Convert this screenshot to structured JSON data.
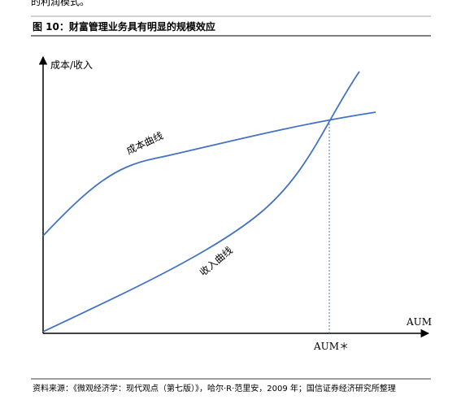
{
  "header": {
    "cut_text": "的利润模式。",
    "title": "图 10：财富管理业务具有明显的规模效应"
  },
  "diagram": {
    "y_axis_label": "成本/收入",
    "x_axis_label": "AUM",
    "x_marker_label": "AUM＊",
    "curves": [
      {
        "label": "成本曲线"
      },
      {
        "label": "收入曲线"
      }
    ]
  },
  "footer": {
    "source": "资料来源：《微观经济学：现代观点（第七版）》，哈尔·R·范里安，2009 年；国信证券经济研究所整理"
  }
}
